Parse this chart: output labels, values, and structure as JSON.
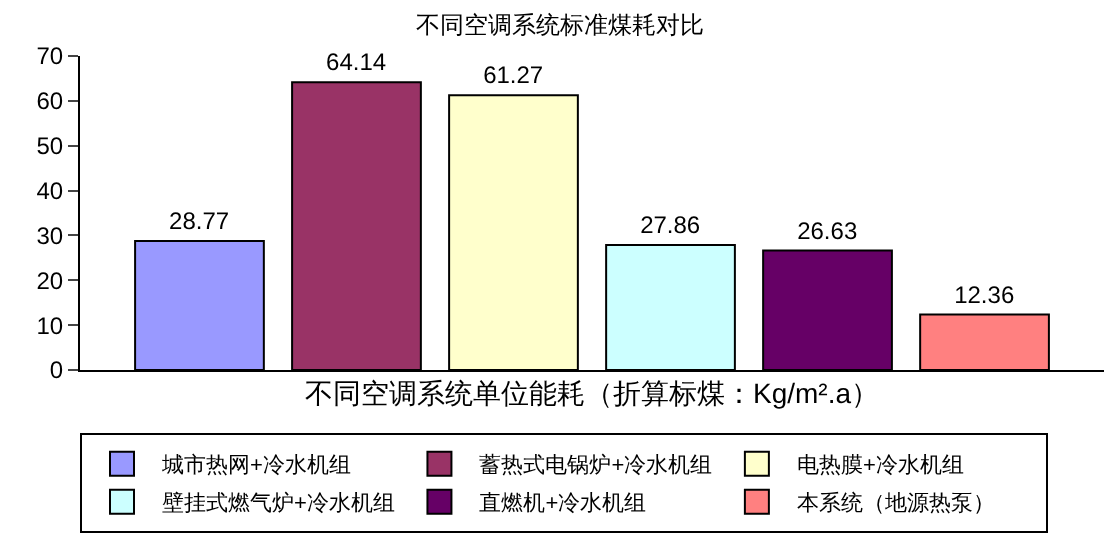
{
  "chart_data": {
    "type": "bar",
    "title": "不同空调系统标准煤耗对比",
    "xlabel": "不同空调系统单位能耗（折算标煤：Kg/m².a）",
    "categories": [
      null
    ],
    "series": [
      {
        "name": "城市热网+冷水机组",
        "color": "#9999ff",
        "values": [
          28.77
        ]
      },
      {
        "name": "蓄热式电锅炉+冷水机组",
        "color": "#993366",
        "values": [
          64.14
        ]
      },
      {
        "name": "电热膜+冷水机组",
        "color": "#ffffcc",
        "values": [
          61.27
        ]
      },
      {
        "name": "壁挂式燃气炉+冷水机组",
        "color": "#ccffff",
        "values": [
          27.86
        ]
      },
      {
        "name": "直燃机+冷水机组",
        "color": "#660066",
        "values": [
          26.63
        ]
      },
      {
        "name": "本系统（地源热泵）",
        "color": "#ff8080",
        "values": [
          12.36
        ]
      }
    ],
    "ylim": [
      0,
      70
    ],
    "yticks": [
      0,
      10,
      20,
      30,
      40,
      50,
      60,
      70
    ],
    "data_labels": true,
    "legend": "bottom",
    "grid": false
  }
}
